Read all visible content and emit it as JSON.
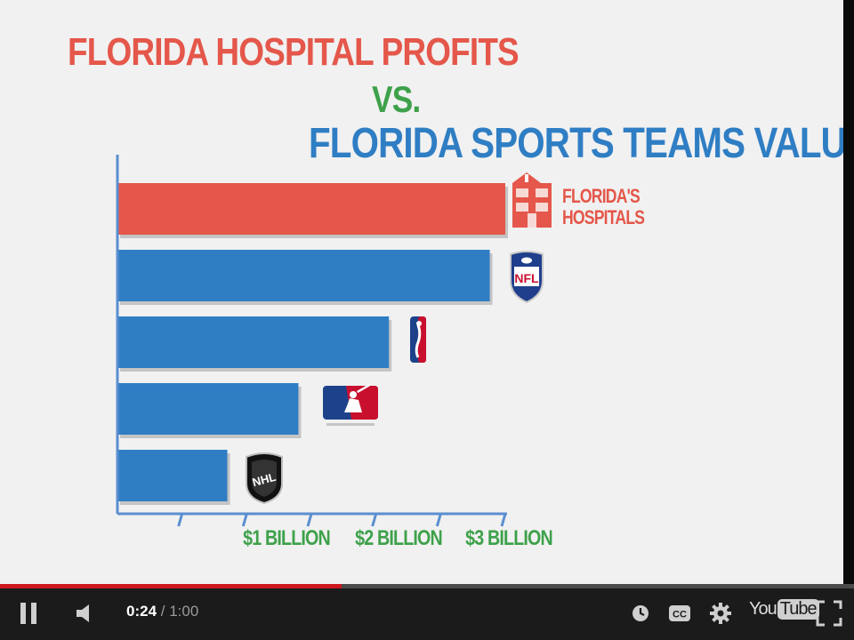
{
  "video": {
    "title_line1": "FLORIDA HOSPITAL PROFITS",
    "title_line2": "VS.",
    "title_line3": "FLORIDA SPORTS TEAMS VALUE"
  },
  "chart_data": {
    "type": "bar",
    "orientation": "horizontal",
    "categories": [
      "Florida's Hospitals",
      "NFL",
      "NBA",
      "MLB",
      "NHL"
    ],
    "values": [
      3.0,
      2.88,
      2.1,
      1.4,
      0.85
    ],
    "colors": [
      "#e4574a",
      "#2f7ec4",
      "#2f7ec4",
      "#2f7ec4",
      "#2f7ec4"
    ],
    "bar_label": "FLORIDA'S\nHOSPITALS",
    "x_ticks": [
      {
        "value": 1,
        "label": "$1 BILLION"
      },
      {
        "value": 2,
        "label": "$2 BILLION"
      },
      {
        "value": 3,
        "label": "$3 BILLION"
      }
    ],
    "xlim": [
      0,
      3
    ],
    "title_color": "#e4574a",
    "vs_color": "#3ea14a",
    "subtitle_color": "#2f7ec4"
  },
  "player": {
    "current_time": "0:24",
    "duration": "/ 1:00",
    "progress": 0.4,
    "logo_you": "You",
    "logo_tube": "Tube",
    "icons": [
      "pause-icon",
      "volume-icon",
      "watch-later-icon",
      "captions-icon",
      "settings-icon",
      "fullscreen-icon"
    ]
  }
}
